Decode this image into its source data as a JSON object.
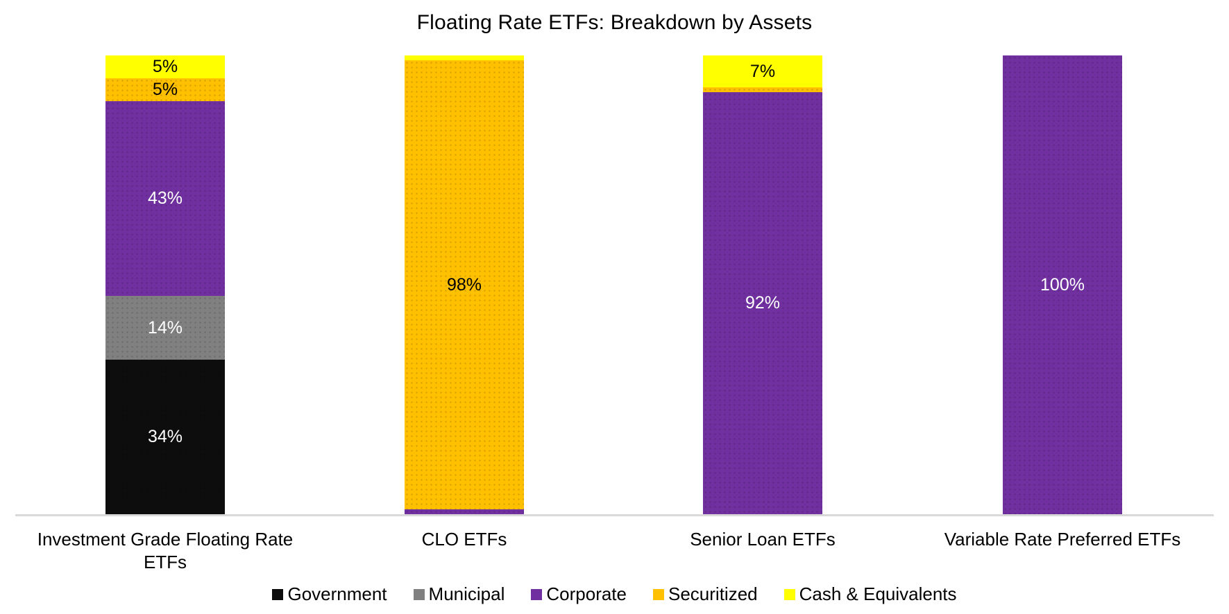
{
  "title": "Floating Rate ETFs: Breakdown by Assets",
  "chart_data": {
    "type": "bar",
    "variant": "stacked-100-percent-column",
    "title": "Floating Rate ETFs: Breakdown by Assets",
    "categories": [
      "Investment Grade Floating Rate ETFs",
      "CLO ETFs",
      "Senior Loan ETFs",
      "Variable Rate Preferred ETFs"
    ],
    "series": [
      {
        "name": "Government",
        "color": "#0d0d0d",
        "values": [
          34,
          0,
          0,
          0
        ]
      },
      {
        "name": "Municipal",
        "color": "#808080",
        "values": [
          14,
          0,
          0,
          0
        ]
      },
      {
        "name": "Corporate",
        "color": "#7030a0",
        "values": [
          43,
          1,
          92,
          100
        ]
      },
      {
        "name": "Securitized",
        "color": "#ffc000",
        "values": [
          5,
          98,
          1,
          0
        ]
      },
      {
        "name": "Cash & Equivalents",
        "color": "#ffff00",
        "values": [
          5,
          1,
          7,
          0
        ]
      }
    ],
    "ylim": [
      0,
      100
    ],
    "grid": false,
    "y_axis_visible": false,
    "x_axis_line_color": "#d9d9d9",
    "legend_position": "bottom",
    "data_label_font_color_on_dark": "#ffffff",
    "data_label_font_color_on_light": "#000000"
  },
  "bars": [
    {
      "category": "Investment Grade Floating Rate ETFs",
      "segments": [
        {
          "name": "Cash & Equivalents",
          "value": 5,
          "label": "5%",
          "color": "#ffff00",
          "text_color": "#000000"
        },
        {
          "name": "Securitized",
          "value": 5,
          "label": "5%",
          "color": "#ffc000",
          "text_color": "#000000"
        },
        {
          "name": "Corporate",
          "value": 43,
          "label": "43%",
          "color": "#7030a0",
          "text_color": "#ffffff"
        },
        {
          "name": "Municipal",
          "value": 14,
          "label": "14%",
          "color": "#808080",
          "text_color": "#ffffff"
        },
        {
          "name": "Government",
          "value": 34,
          "label": "34%",
          "color": "#0d0d0d",
          "text_color": "#ffffff"
        }
      ]
    },
    {
      "category": "CLO ETFs",
      "segments": [
        {
          "name": "Cash & Equivalents",
          "value": 1,
          "label": "",
          "color": "#ffff00",
          "text_color": "#000000"
        },
        {
          "name": "Securitized",
          "value": 98,
          "label": "98%",
          "color": "#ffc000",
          "text_color": "#000000"
        },
        {
          "name": "Corporate",
          "value": 1,
          "label": "",
          "color": "#7030a0",
          "text_color": "#ffffff"
        }
      ]
    },
    {
      "category": "Senior Loan ETFs",
      "segments": [
        {
          "name": "Cash & Equivalents",
          "value": 7,
          "label": "7%",
          "color": "#ffff00",
          "text_color": "#000000"
        },
        {
          "name": "Securitized",
          "value": 1,
          "label": "",
          "color": "#ffc000",
          "text_color": "#000000"
        },
        {
          "name": "Corporate",
          "value": 92,
          "label": "92%",
          "color": "#7030a0",
          "text_color": "#ffffff"
        }
      ]
    },
    {
      "category": "Variable Rate Preferred ETFs",
      "segments": [
        {
          "name": "Corporate",
          "value": 100,
          "label": "100%",
          "color": "#7030a0",
          "text_color": "#ffffff"
        }
      ]
    }
  ],
  "axis": {
    "line_color": "#d9d9d9"
  },
  "legend": {
    "items": [
      {
        "label": "Government",
        "color": "#0d0d0d"
      },
      {
        "label": "Municipal",
        "color": "#808080"
      },
      {
        "label": "Corporate",
        "color": "#7030a0"
      },
      {
        "label": "Securitized",
        "color": "#ffc000"
      },
      {
        "label": "Cash & Equivalents",
        "color": "#ffff00"
      }
    ]
  }
}
